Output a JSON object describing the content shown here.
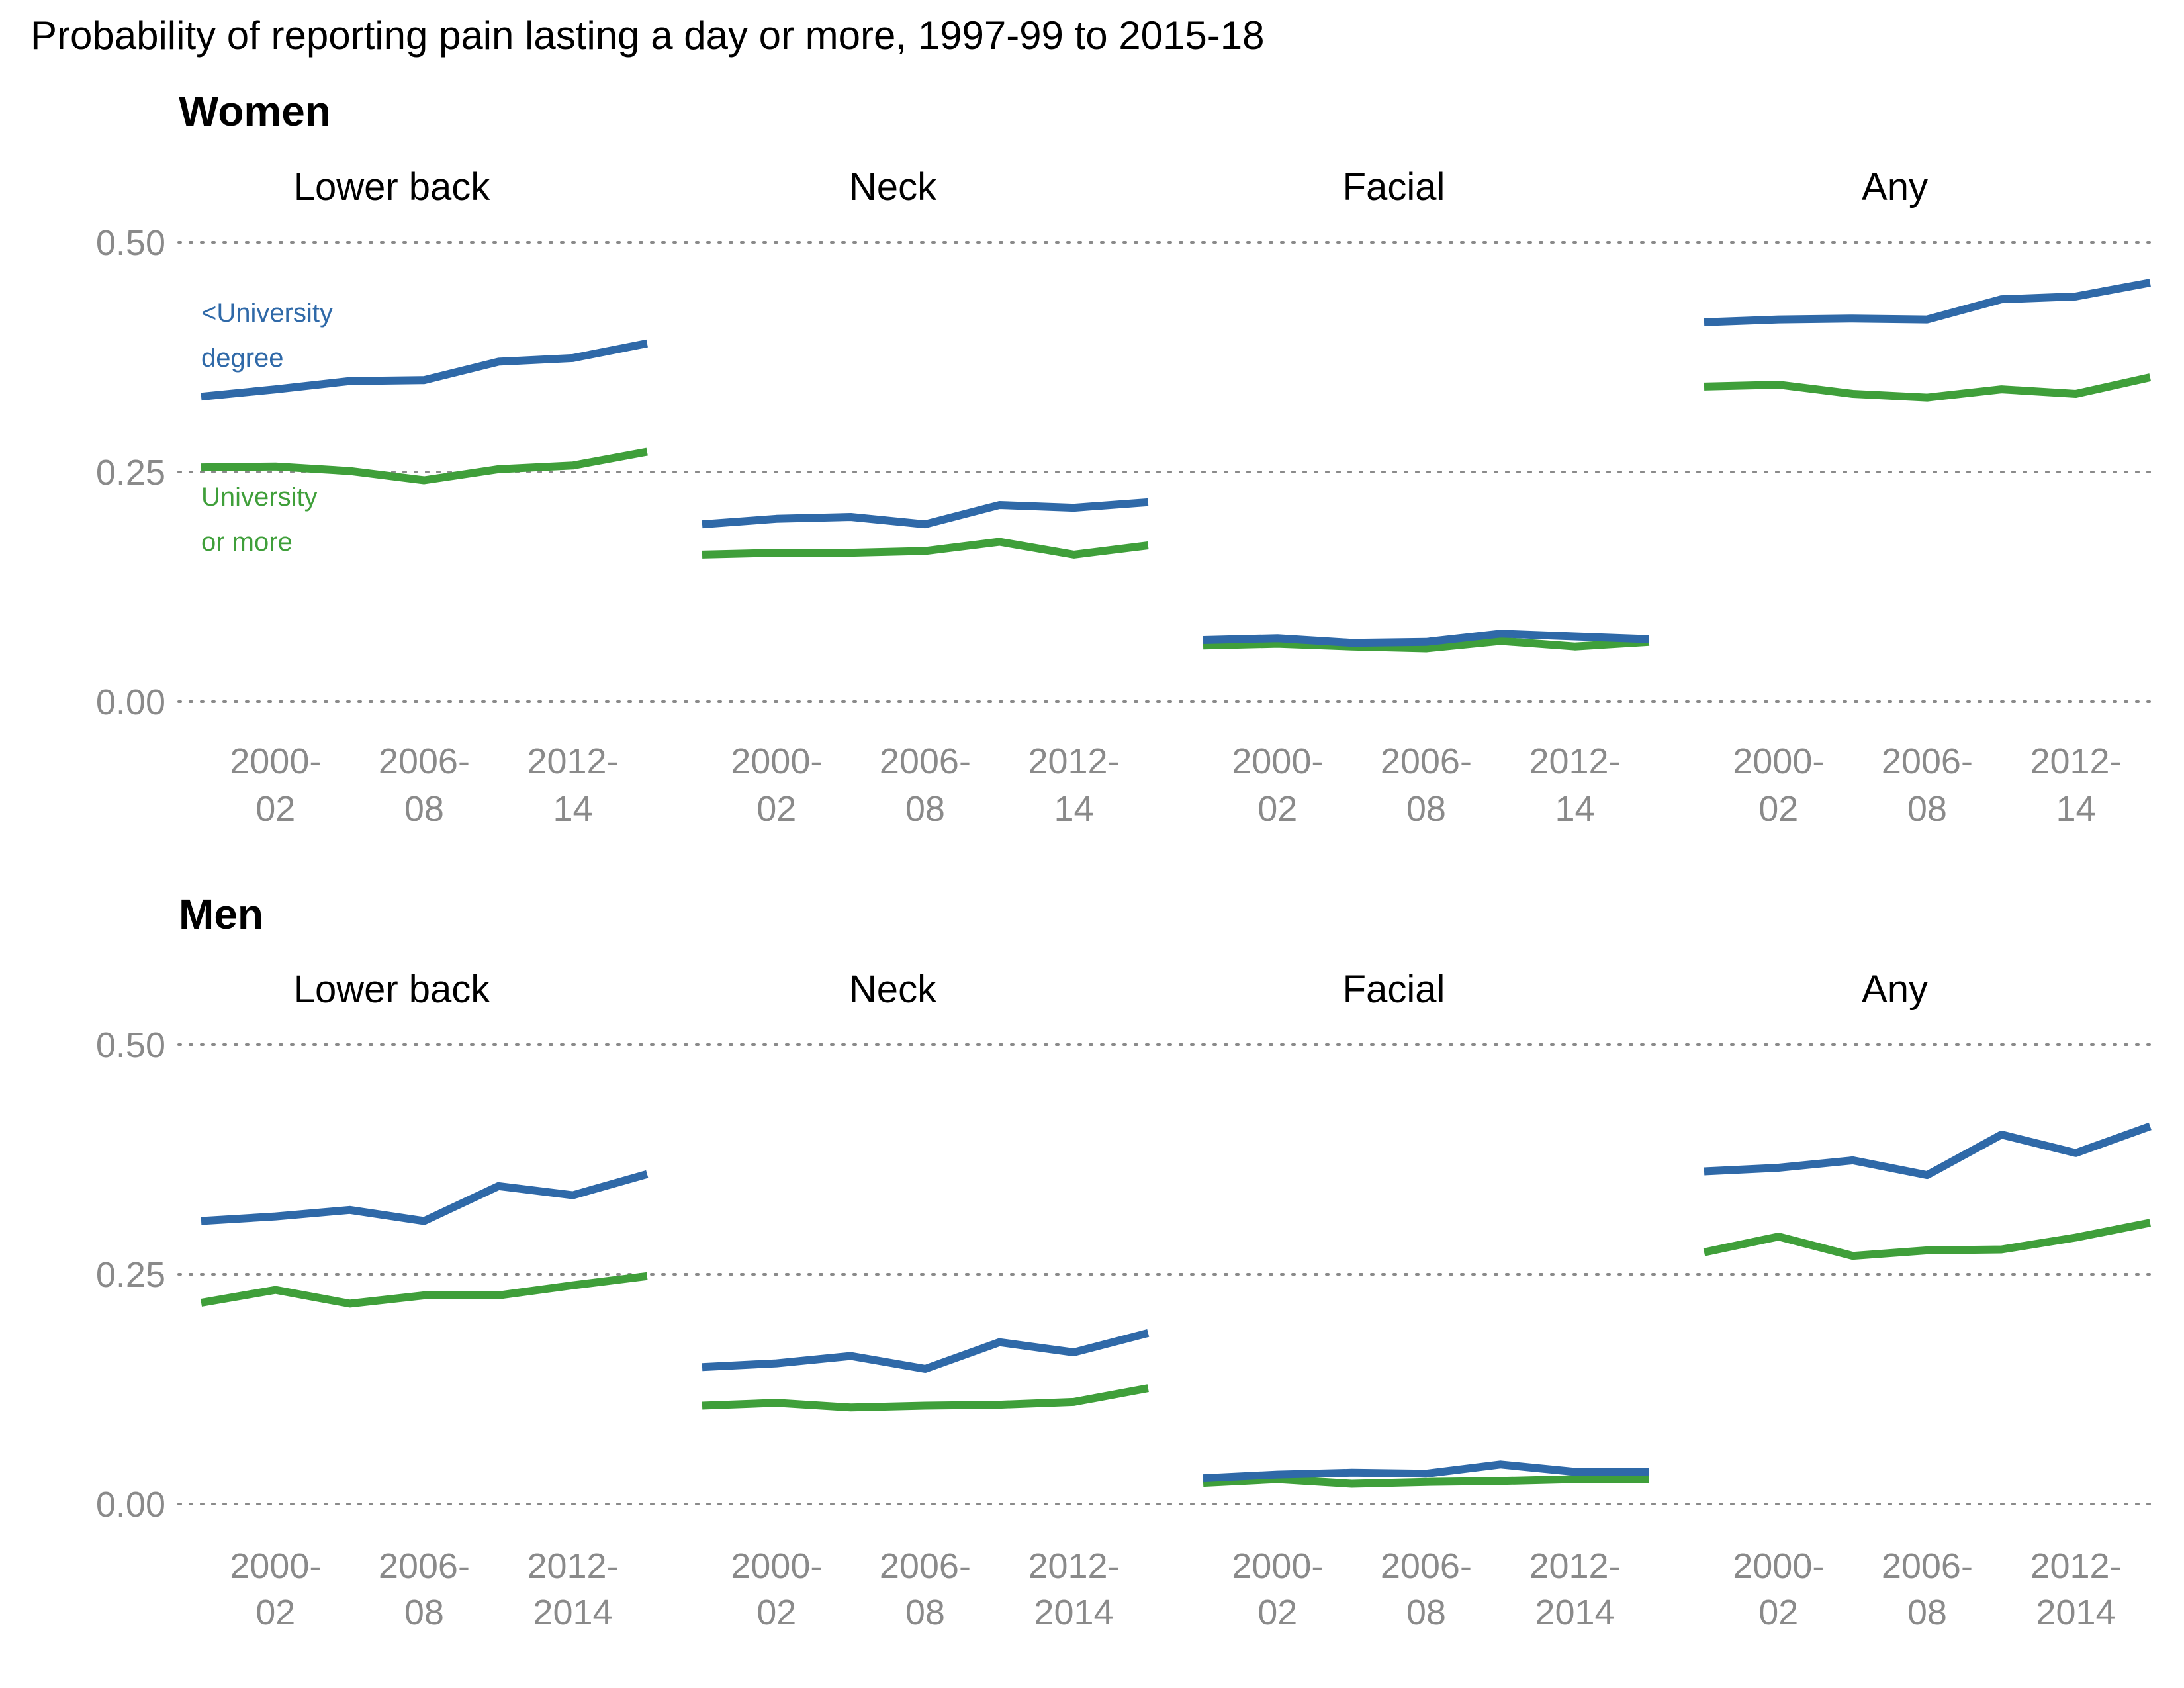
{
  "chart_data": {
    "type": "line",
    "title": "Probability of reporting pain lasting a day or more, 1997-99 to 2015-18",
    "x": [
      1,
      2,
      3,
      4,
      5,
      6,
      7
    ],
    "ylim": [
      0,
      0.5
    ],
    "yticks": [
      "0.00",
      "0.25",
      "0.50"
    ],
    "yticks_values": [
      0,
      0.25,
      0.5
    ],
    "grid": true,
    "colors": {
      "below_university": "#2f69a8",
      "university": "#3f9f3a"
    },
    "series_labels": {
      "below_university": [
        "<University",
        "degree"
      ],
      "university": [
        "University",
        "or more"
      ]
    },
    "groups": [
      {
        "name": "Women",
        "xtick_positions": [
          2,
          4,
          6
        ],
        "xticks": [
          {
            "line1": "2000-",
            "line2": "02"
          },
          {
            "line1": "2006-",
            "line2": "08"
          },
          {
            "line1": "2012-",
            "line2": "14"
          }
        ],
        "facets": [
          {
            "title": "Lower back",
            "series": [
              {
                "key": "below_university",
                "values": [
                  0.332,
                  0.34,
                  0.349,
                  0.35,
                  0.37,
                  0.374,
                  0.39
                ]
              },
              {
                "key": "university",
                "values": [
                  0.255,
                  0.256,
                  0.251,
                  0.241,
                  0.253,
                  0.257,
                  0.272
                ]
              }
            ]
          },
          {
            "title": "Neck",
            "series": [
              {
                "key": "below_university",
                "values": [
                  0.193,
                  0.199,
                  0.201,
                  0.193,
                  0.214,
                  0.211,
                  0.217
                ]
              },
              {
                "key": "university",
                "values": [
                  0.16,
                  0.162,
                  0.162,
                  0.164,
                  0.174,
                  0.16,
                  0.17
                ]
              }
            ]
          },
          {
            "title": "Facial",
            "series": [
              {
                "key": "below_university",
                "values": [
                  0.067,
                  0.069,
                  0.064,
                  0.065,
                  0.074,
                  0.071,
                  0.068
                ]
              },
              {
                "key": "university",
                "values": [
                  0.061,
                  0.063,
                  0.06,
                  0.058,
                  0.066,
                  0.06,
                  0.065
                ]
              }
            ]
          },
          {
            "title": "Any",
            "series": [
              {
                "key": "below_university",
                "values": [
                  0.413,
                  0.416,
                  0.417,
                  0.416,
                  0.438,
                  0.441,
                  0.456
                ]
              },
              {
                "key": "university",
                "values": [
                  0.343,
                  0.345,
                  0.335,
                  0.331,
                  0.34,
                  0.335,
                  0.353
                ]
              }
            ]
          }
        ]
      },
      {
        "name": "Men",
        "xtick_positions": [
          2,
          4,
          6
        ],
        "xticks": [
          {
            "line1": "2000-",
            "line2": "02"
          },
          {
            "line1": "2006-",
            "line2": "08"
          },
          {
            "line1": "2012-",
            "line2": "2014"
          }
        ],
        "facets": [
          {
            "title": "Lower back",
            "series": [
              {
                "key": "below_university",
                "values": [
                  0.308,
                  0.313,
                  0.32,
                  0.308,
                  0.346,
                  0.336,
                  0.359
                ]
              },
              {
                "key": "university",
                "values": [
                  0.219,
                  0.233,
                  0.218,
                  0.227,
                  0.227,
                  0.238,
                  0.248
                ]
              }
            ]
          },
          {
            "title": "Neck",
            "series": [
              {
                "key": "below_university",
                "values": [
                  0.149,
                  0.153,
                  0.161,
                  0.147,
                  0.176,
                  0.165,
                  0.186
                ]
              },
              {
                "key": "university",
                "values": [
                  0.107,
                  0.11,
                  0.105,
                  0.107,
                  0.108,
                  0.111,
                  0.126
                ]
              }
            ]
          },
          {
            "title": "Facial",
            "series": [
              {
                "key": "below_university",
                "values": [
                  0.028,
                  0.032,
                  0.034,
                  0.033,
                  0.043,
                  0.035,
                  0.035
                ]
              },
              {
                "key": "university",
                "values": [
                  0.023,
                  0.027,
                  0.022,
                  0.024,
                  0.025,
                  0.027,
                  0.027
                ]
              }
            ]
          },
          {
            "title": "Any",
            "series": [
              {
                "key": "below_university",
                "values": [
                  0.362,
                  0.366,
                  0.374,
                  0.358,
                  0.402,
                  0.382,
                  0.411
                ]
              },
              {
                "key": "university",
                "values": [
                  0.274,
                  0.291,
                  0.27,
                  0.276,
                  0.277,
                  0.29,
                  0.306
                ]
              }
            ]
          }
        ]
      }
    ]
  }
}
